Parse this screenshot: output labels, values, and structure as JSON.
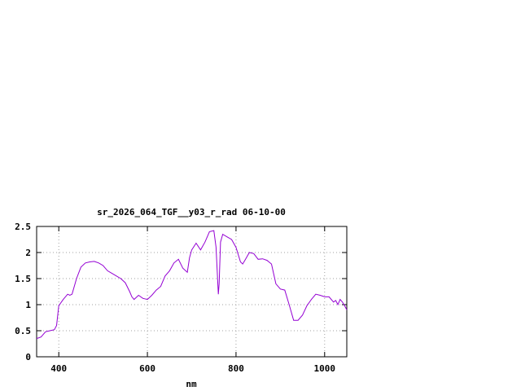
{
  "chart_data": {
    "type": "line",
    "title": "sr_2026_064_TGF__y03_r_rad 06-10-00",
    "xlabel": "nm",
    "ylabel": "",
    "xlim": [
      350,
      1050
    ],
    "ylim": [
      0,
      2.5
    ],
    "xticks": [
      400,
      600,
      800,
      1000
    ],
    "xtick_labels": [
      "400",
      "600",
      "800",
      "1000"
    ],
    "yticks": [
      0,
      0.5,
      1,
      1.5,
      2,
      2.5
    ],
    "ytick_labels": [
      "0",
      "0.5",
      "1",
      "1.5",
      "2",
      "2.5"
    ],
    "grid": true,
    "legend": "none",
    "line_color": "#9400d3",
    "series": [
      {
        "x": [
          350,
          360,
          370,
          380,
          390,
          395,
          400,
          410,
          420,
          425,
          430,
          440,
          450,
          460,
          470,
          480,
          490,
          500,
          510,
          520,
          530,
          540,
          550,
          560,
          565,
          570,
          580,
          590,
          600,
          610,
          620,
          630,
          640,
          650,
          660,
          670,
          680,
          690,
          695,
          700,
          710,
          720,
          730,
          740,
          750,
          755,
          760,
          762,
          765,
          770,
          780,
          790,
          800,
          810,
          815,
          820,
          830,
          840,
          850,
          860,
          870,
          880,
          890,
          900,
          910,
          920,
          930,
          935,
          940,
          950,
          960,
          970,
          980,
          990,
          1000,
          1010,
          1020,
          1025,
          1030,
          1035,
          1040,
          1045,
          1050
        ],
        "values": [
          0.35,
          0.38,
          0.48,
          0.5,
          0.52,
          0.6,
          0.98,
          1.1,
          1.2,
          1.18,
          1.2,
          1.5,
          1.72,
          1.8,
          1.82,
          1.83,
          1.8,
          1.75,
          1.65,
          1.6,
          1.55,
          1.5,
          1.42,
          1.25,
          1.15,
          1.1,
          1.18,
          1.12,
          1.1,
          1.18,
          1.28,
          1.35,
          1.55,
          1.65,
          1.8,
          1.87,
          1.7,
          1.62,
          1.9,
          2.05,
          2.18,
          2.05,
          2.2,
          2.4,
          2.42,
          2.1,
          1.2,
          1.4,
          2.2,
          2.35,
          2.3,
          2.25,
          2.1,
          1.82,
          1.78,
          1.85,
          2.0,
          1.98,
          1.87,
          1.88,
          1.85,
          1.78,
          1.4,
          1.3,
          1.28,
          1.0,
          0.7,
          0.7,
          0.7,
          0.8,
          0.98,
          1.1,
          1.2,
          1.18,
          1.15,
          1.15,
          1.05,
          1.08,
          1.0,
          1.1,
          1.05,
          0.98,
          0.9
        ]
      }
    ]
  }
}
